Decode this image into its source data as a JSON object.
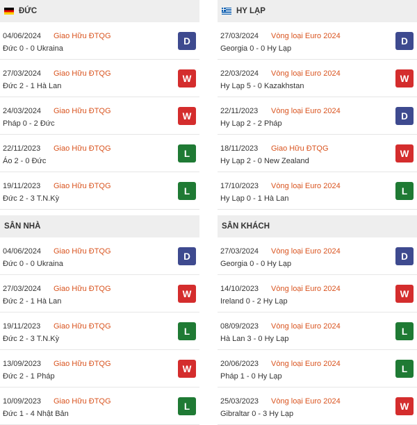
{
  "colors": {
    "draw": "#3e4a8f",
    "win": "#d42d2d",
    "loss": "#1f7a34",
    "competition": "#d9531e",
    "header_bg": "#eeeeee"
  },
  "left": {
    "header": {
      "title": "ĐỨC",
      "flag": "flag-germany-icon"
    },
    "matches": [
      {
        "date": "04/06/2024",
        "competition": "Giao Hữu ĐTQG",
        "result": "Đức 0 - 0 Ukraina",
        "badge": "D"
      },
      {
        "date": "27/03/2024",
        "competition": "Giao Hữu ĐTQG",
        "result": "Đức 2 - 1 Hà Lan",
        "badge": "W"
      },
      {
        "date": "24/03/2024",
        "competition": "Giao Hữu ĐTQG",
        "result": "Pháp 0 - 2 Đức",
        "badge": "W"
      },
      {
        "date": "22/11/2023",
        "competition": "Giao Hữu ĐTQG",
        "result": "Áo 2 - 0 Đức",
        "badge": "L"
      },
      {
        "date": "19/11/2023",
        "competition": "Giao Hữu ĐTQG",
        "result": "Đức 2 - 3 T.N.Kỳ",
        "badge": "L"
      }
    ],
    "header2": {
      "title": "SÂN NHÀ"
    },
    "matches2": [
      {
        "date": "04/06/2024",
        "competition": "Giao Hữu ĐTQG",
        "result": "Đức 0 - 0 Ukraina",
        "badge": "D"
      },
      {
        "date": "27/03/2024",
        "competition": "Giao Hữu ĐTQG",
        "result": "Đức 2 - 1 Hà Lan",
        "badge": "W"
      },
      {
        "date": "19/11/2023",
        "competition": "Giao Hữu ĐTQG",
        "result": "Đức 2 - 3 T.N.Kỳ",
        "badge": "L"
      },
      {
        "date": "13/09/2023",
        "competition": "Giao Hữu ĐTQG",
        "result": "Đức 2 - 1 Pháp",
        "badge": "W"
      },
      {
        "date": "10/09/2023",
        "competition": "Giao Hữu ĐTQG",
        "result": "Đức 1 - 4 Nhật Bản",
        "badge": "L"
      }
    ]
  },
  "right": {
    "header": {
      "title": "HY LẠP",
      "flag": "flag-greece-icon"
    },
    "matches": [
      {
        "date": "27/03/2024",
        "competition": "Vòng loại Euro 2024",
        "result": "Georgia 0 - 0 Hy Lạp",
        "badge": "D"
      },
      {
        "date": "22/03/2024",
        "competition": "Vòng loại Euro 2024",
        "result": "Hy Lạp 5 - 0 Kazakhstan",
        "badge": "W"
      },
      {
        "date": "22/11/2023",
        "competition": "Vòng loại Euro 2024",
        "result": "Hy Lạp 2 - 2 Pháp",
        "badge": "D"
      },
      {
        "date": "18/11/2023",
        "competition": "Giao Hữu ĐTQG",
        "result": "Hy Lạp 2 - 0 New Zealand",
        "badge": "W"
      },
      {
        "date": "17/10/2023",
        "competition": "Vòng loại Euro 2024",
        "result": "Hy Lạp 0 - 1 Hà Lan",
        "badge": "L"
      }
    ],
    "header2": {
      "title": "SÂN KHÁCH"
    },
    "matches2": [
      {
        "date": "27/03/2024",
        "competition": "Vòng loại Euro 2024",
        "result": "Georgia 0 - 0 Hy Lạp",
        "badge": "D"
      },
      {
        "date": "14/10/2023",
        "competition": "Vòng loại Euro 2024",
        "result": "Ireland 0 - 2 Hy Lạp",
        "badge": "W"
      },
      {
        "date": "08/09/2023",
        "competition": "Vòng loại Euro 2024",
        "result": "Hà Lan 3 - 0 Hy Lạp",
        "badge": "L"
      },
      {
        "date": "20/06/2023",
        "competition": "Vòng loại Euro 2024",
        "result": "Pháp 1 - 0 Hy Lạp",
        "badge": "L"
      },
      {
        "date": "25/03/2023",
        "competition": "Vòng loại Euro 2024",
        "result": "Gibraltar 0 - 3 Hy Lạp",
        "badge": "W"
      }
    ]
  }
}
